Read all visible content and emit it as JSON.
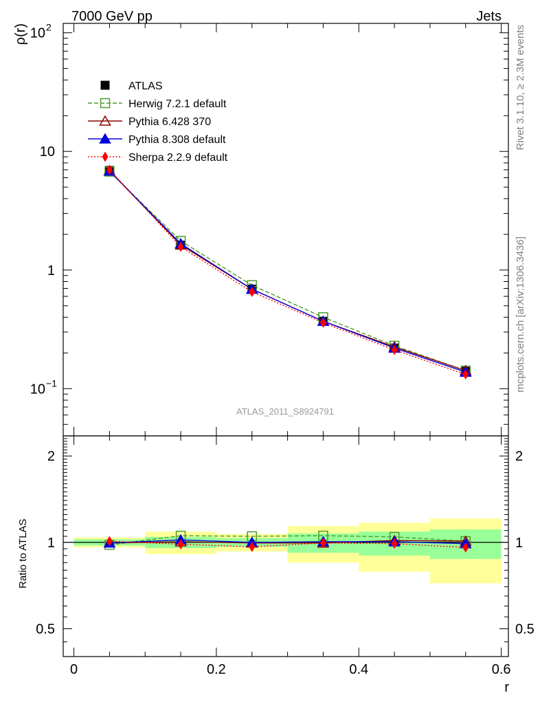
{
  "header": {
    "left": "7000 GeV pp",
    "right": "Jets"
  },
  "side_labels": {
    "rivet": "Rivet 3.1.10, ≥ 2.3M events",
    "mcplots": "mcplots.cern.ch [arXiv:1306.3436]"
  },
  "watermark": "ATLAS_2011_S8924791",
  "chart_data": [
    {
      "type": "line",
      "ylabel": "ρ(r)",
      "yscale": "log",
      "ylim": [
        0.04,
        120
      ],
      "y_ticks": [
        {
          "value": 100,
          "label": "10",
          "sup": "2"
        },
        {
          "value": 10,
          "label": "10",
          "sup": ""
        },
        {
          "value": 1,
          "label": "1",
          "sup": ""
        },
        {
          "value": 0.1,
          "label": "10",
          "sup": "−1"
        }
      ],
      "xlim": [
        -0.015,
        0.61
      ],
      "x": [
        0.05,
        0.15,
        0.25,
        0.35,
        0.45,
        0.55
      ],
      "legend_position": "top-left",
      "series": [
        {
          "name": "ATLAS",
          "color": "#000000",
          "marker": "square-filled",
          "line": "none",
          "values": [
            6.9,
            1.62,
            0.69,
            0.37,
            0.22,
            0.14
          ]
        },
        {
          "name": "Herwig 7.2.1 default",
          "color": "#4c9a2a",
          "marker": "square-open",
          "line": "dashed",
          "values": [
            6.75,
            1.76,
            0.745,
            0.4,
            0.23,
            0.142
          ]
        },
        {
          "name": "Pythia 6.428 370",
          "color": "#8b0000",
          "marker": "triangle-open",
          "line": "solid",
          "values": [
            6.85,
            1.63,
            0.69,
            0.37,
            0.225,
            0.142
          ]
        },
        {
          "name": "Pythia 8.308 default",
          "color": "#0000dd",
          "marker": "triangle-filled",
          "line": "solid",
          "values": [
            6.85,
            1.67,
            0.69,
            0.37,
            0.22,
            0.138
          ]
        },
        {
          "name": "Sherpa 2.2.9 default",
          "color": "#ff0000",
          "marker": "diamond-filled",
          "line": "dotted",
          "values": [
            7.0,
            1.57,
            0.655,
            0.36,
            0.212,
            0.132
          ]
        }
      ]
    },
    {
      "type": "line",
      "ylabel": "Ratio to ATLAS",
      "yscale": "log",
      "ylim": [
        0.4,
        2.35
      ],
      "y_ticks": [
        {
          "value": 0.5,
          "label": "0.5"
        },
        {
          "value": 1,
          "label": "1"
        },
        {
          "value": 2,
          "label": "2"
        }
      ],
      "xlabel": "r",
      "xlim": [
        -0.015,
        0.61
      ],
      "x_ticks": [
        {
          "value": 0,
          "label": "0"
        },
        {
          "value": 0.2,
          "label": "0.2"
        },
        {
          "value": 0.4,
          "label": "0.4"
        },
        {
          "value": 0.6,
          "label": "0.6"
        }
      ],
      "x": [
        0.05,
        0.15,
        0.25,
        0.35,
        0.45,
        0.55
      ],
      "bins": [
        [
          0.0,
          0.1
        ],
        [
          0.1,
          0.2
        ],
        [
          0.2,
          0.3
        ],
        [
          0.3,
          0.4
        ],
        [
          0.4,
          0.5
        ],
        [
          0.5,
          0.6
        ]
      ],
      "band_outer": [
        [
          0.96,
          1.04
        ],
        [
          0.91,
          1.09
        ],
        [
          0.93,
          1.07
        ],
        [
          0.85,
          1.14
        ],
        [
          0.79,
          1.17
        ],
        [
          0.72,
          1.21
        ]
      ],
      "band_inner": [
        [
          0.975,
          1.025
        ],
        [
          0.955,
          1.045
        ],
        [
          0.965,
          1.035
        ],
        [
          0.92,
          1.075
        ],
        [
          0.9,
          1.09
        ],
        [
          0.875,
          1.11
        ]
      ],
      "band_colors": {
        "outer": "#ffff99",
        "inner": "#99ff99"
      },
      "reference": 1,
      "series": [
        {
          "name": "Herwig 7.2.1 default",
          "color": "#4c9a2a",
          "marker": "square-open",
          "line": "dashed",
          "values": [
            0.98,
            1.055,
            1.05,
            1.055,
            1.045,
            1.01
          ]
        },
        {
          "name": "Pythia 6.428 370",
          "color": "#8b0000",
          "marker": "triangle-open",
          "line": "solid",
          "values": [
            0.995,
            1.005,
            0.995,
            0.995,
            1.015,
            1.01
          ]
        },
        {
          "name": "Pythia 8.308 default",
          "color": "#0000dd",
          "marker": "triangle-filled",
          "line": "solid",
          "values": [
            0.995,
            1.02,
            1.0,
            1.005,
            1.005,
            0.99
          ]
        },
        {
          "name": "Sherpa 2.2.9 default",
          "color": "#ff0000",
          "marker": "diamond-filled",
          "line": "dotted",
          "values": [
            1.01,
            0.985,
            0.965,
            0.995,
            0.99,
            0.96
          ]
        }
      ]
    }
  ]
}
